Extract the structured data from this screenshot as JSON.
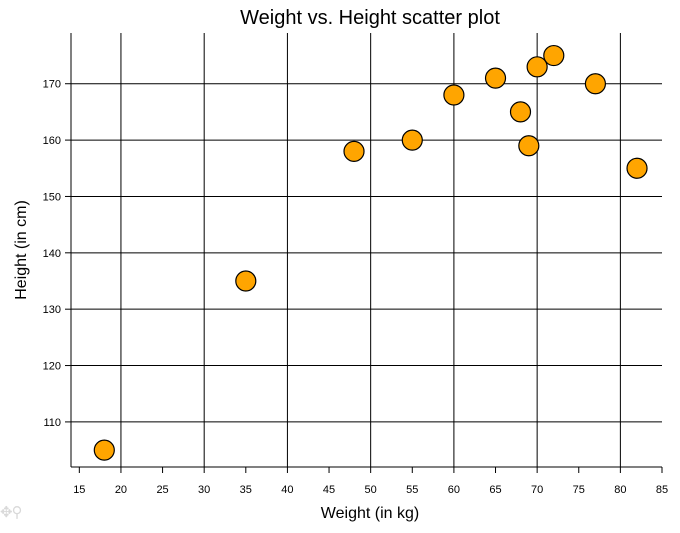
{
  "chart_data": {
    "type": "scatter",
    "title": "Weight vs. Height scatter plot",
    "xlabel": "Weight (in kg)",
    "ylabel": "Height (in cm)",
    "xlim": [
      14,
      85
    ],
    "ylim": [
      102,
      179
    ],
    "xticks": [
      15,
      20,
      25,
      30,
      35,
      40,
      45,
      50,
      55,
      60,
      65,
      70,
      75,
      80,
      85
    ],
    "yticks": [
      110,
      120,
      130,
      140,
      150,
      160,
      170
    ],
    "grid": true,
    "series": [
      {
        "points": [
          {
            "x": 18,
            "y": 105
          },
          {
            "x": 35,
            "y": 135
          },
          {
            "x": 48,
            "y": 158
          },
          {
            "x": 55,
            "y": 160
          },
          {
            "x": 60,
            "y": 168
          },
          {
            "x": 65,
            "y": 171
          },
          {
            "x": 68,
            "y": 165
          },
          {
            "x": 69,
            "y": 159
          },
          {
            "x": 70,
            "y": 173
          },
          {
            "x": 72,
            "y": 175
          },
          {
            "x": 77,
            "y": 170
          },
          {
            "x": 82,
            "y": 155
          }
        ],
        "color": "#FFA500"
      }
    ]
  },
  "toolbar": {
    "icons": [
      "pan-icon",
      "zoom-icon"
    ]
  }
}
